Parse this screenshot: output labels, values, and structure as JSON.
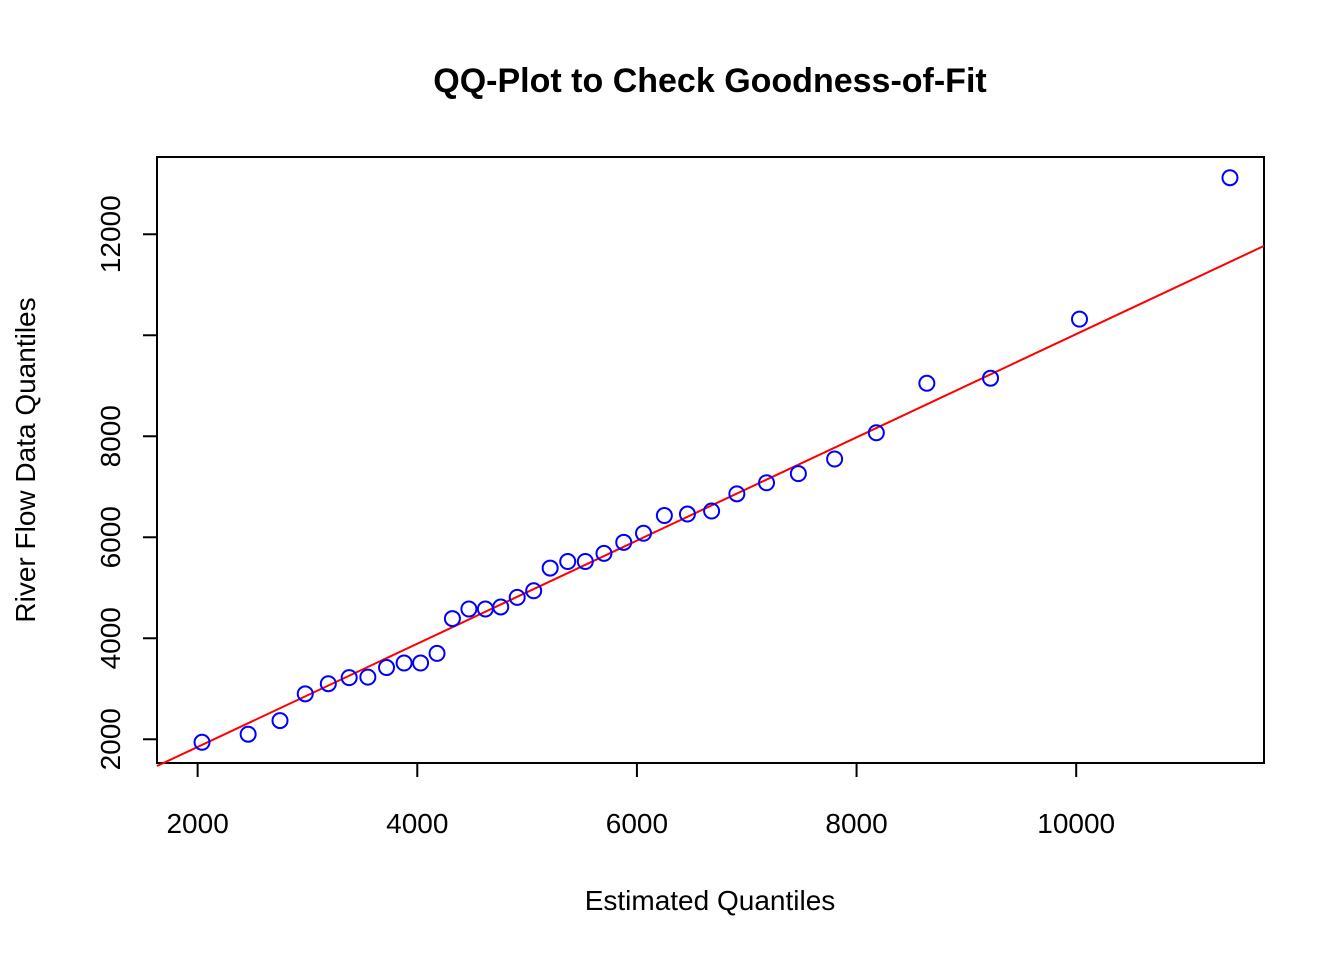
{
  "chart_data": {
    "type": "scatter",
    "title": "QQ-Plot to Check Goodness-of-Fit",
    "xlabel": "Estimated Quantiles",
    "ylabel": "River Flow Data Quantiles",
    "xlim": [
      1630,
      11710
    ],
    "ylim": [
      1530,
      13530
    ],
    "xticks": [
      2000,
      4000,
      6000,
      8000,
      10000
    ],
    "xtick_labels": [
      "2000",
      "4000",
      "6000",
      "8000",
      "10000"
    ],
    "yticks": [
      2000,
      4000,
      6000,
      8000,
      10000,
      12000
    ],
    "ytick_labels": [
      "2000",
      "4000",
      "6000",
      "8000",
      "",
      "12000"
    ],
    "grid": false,
    "point_color": "#0000ff",
    "line_color": "#ff0000",
    "points": [
      {
        "x": 2040,
        "y": 1940
      },
      {
        "x": 2460,
        "y": 2100
      },
      {
        "x": 2750,
        "y": 2370
      },
      {
        "x": 2980,
        "y": 2900
      },
      {
        "x": 3190,
        "y": 3100
      },
      {
        "x": 3380,
        "y": 3220
      },
      {
        "x": 3550,
        "y": 3230
      },
      {
        "x": 3720,
        "y": 3420
      },
      {
        "x": 3880,
        "y": 3510
      },
      {
        "x": 4030,
        "y": 3510
      },
      {
        "x": 4180,
        "y": 3700
      },
      {
        "x": 4320,
        "y": 4390
      },
      {
        "x": 4470,
        "y": 4580
      },
      {
        "x": 4620,
        "y": 4580
      },
      {
        "x": 4760,
        "y": 4620
      },
      {
        "x": 4910,
        "y": 4810
      },
      {
        "x": 5060,
        "y": 4940
      },
      {
        "x": 5210,
        "y": 5390
      },
      {
        "x": 5370,
        "y": 5520
      },
      {
        "x": 5530,
        "y": 5520
      },
      {
        "x": 5700,
        "y": 5680
      },
      {
        "x": 5880,
        "y": 5900
      },
      {
        "x": 6060,
        "y": 6080
      },
      {
        "x": 6250,
        "y": 6430
      },
      {
        "x": 6460,
        "y": 6460
      },
      {
        "x": 6680,
        "y": 6520
      },
      {
        "x": 6910,
        "y": 6860
      },
      {
        "x": 7180,
        "y": 7080
      },
      {
        "x": 7470,
        "y": 7260
      },
      {
        "x": 7800,
        "y": 7550
      },
      {
        "x": 8180,
        "y": 8070
      },
      {
        "x": 8640,
        "y": 9050
      },
      {
        "x": 9220,
        "y": 9150
      },
      {
        "x": 10030,
        "y": 10320
      },
      {
        "x": 11400,
        "y": 13120
      }
    ],
    "reference_line": {
      "x": [
        1630,
        11710
      ],
      "y": [
        1470,
        11770
      ]
    }
  }
}
